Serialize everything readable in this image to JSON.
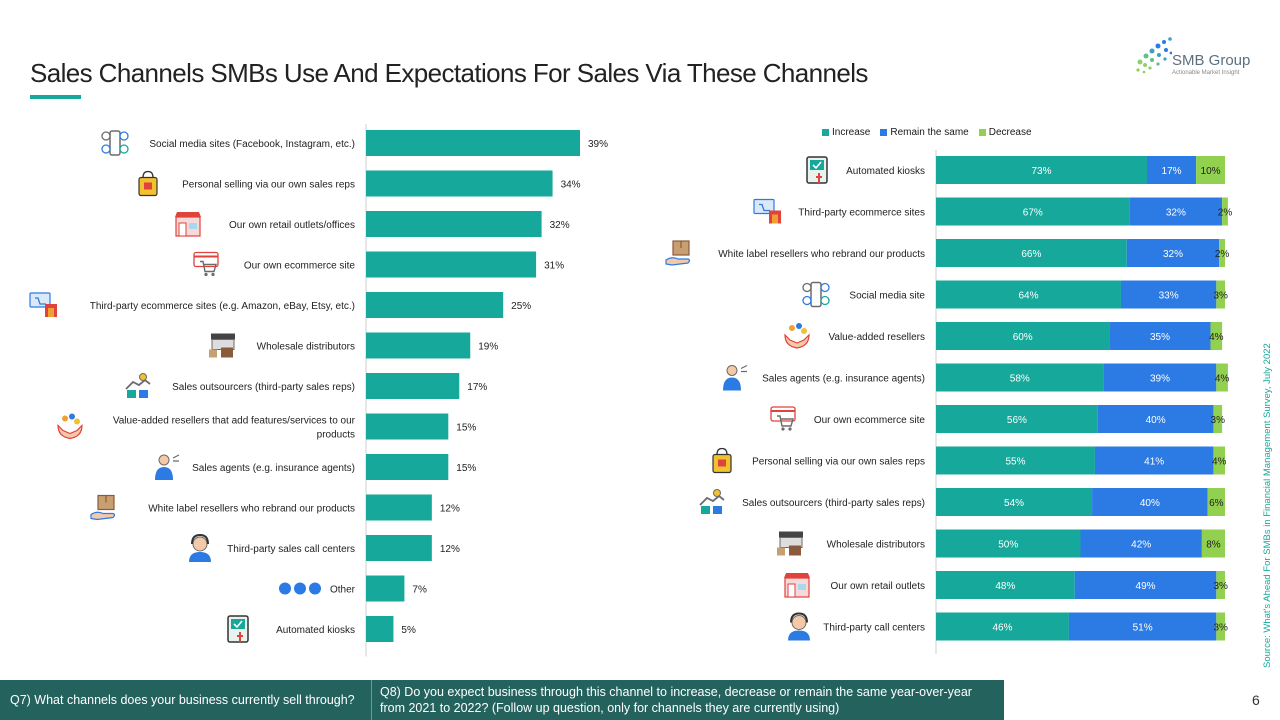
{
  "title": "Sales Channels SMBs Use And Expectations For Sales Via These Channels",
  "logo": {
    "name": "SMB Group",
    "tagline": "Actionable Market Insight"
  },
  "colors": {
    "teal": "#16a89a",
    "blue": "#2c7be5",
    "green": "#92d050",
    "dark_teal": "#24625e"
  },
  "source": "Source: What's Ahead For SMBs in Financial Management Survey, July 2022",
  "footer": {
    "q7": "Q7) What channels does your business currently sell through?",
    "q8": "Q8) Do you expect business through this channel to increase, decrease or remain the same year-over-year from 2021 to 2022?  (Follow up question, only for channels they are currently using)",
    "page": "6"
  },
  "chart_data": [
    {
      "type": "bar",
      "orientation": "horizontal",
      "categories": [
        "Social media sites (Facebook, Instagram, etc.)",
        "Personal selling via our own sales reps",
        "Our own retail outlets/offices",
        "Our own ecommerce site",
        "Third-party ecommerce sites (e.g. Amazon, eBay, Etsy, etc.)",
        "Wholesale distributors",
        "Sales outsourcers (third-party sales reps)",
        "Value-added resellers that add features/services to our products",
        "Sales agents (e.g.  insurance agents)",
        "White label resellers who rebrand our products",
        "Third-party sales call centers",
        "Other",
        "Automated kiosks"
      ],
      "values": [
        39,
        34,
        32,
        31,
        25,
        19,
        17,
        15,
        15,
        12,
        12,
        7,
        5
      ],
      "labels": [
        "39%",
        "34%",
        "32%",
        "31%",
        "25%",
        "19%",
        "17%",
        "15%",
        "15%",
        "12%",
        "12%",
        "7%",
        "5%"
      ],
      "icons": [
        "social-media-icon",
        "shopping-bag-icon",
        "storefront-icon",
        "ecommerce-cart-icon",
        "third-party-ecommerce-icon",
        "wholesale-truck-icon",
        "handshake-outsourcer-icon",
        "value-added-hands-icon",
        "sales-agent-icon",
        "white-label-box-icon",
        "call-center-headset-icon",
        "other-dots-icon",
        "kiosk-icon"
      ],
      "xlim": [
        0,
        100
      ],
      "unit": "%"
    },
    {
      "type": "bar",
      "orientation": "horizontal",
      "stacked": true,
      "legend": "top",
      "categories": [
        "Automated kiosks",
        "Third-party ecommerce sites",
        "White label resellers who rebrand our products",
        "Social media site",
        "Value-added resellers",
        "Sales agents (e.g. insurance agents)",
        "Our own ecommerce site",
        "Personal selling via our own sales reps",
        "Sales outsourcers (third-party sales reps)",
        "Wholesale distributors",
        "Our own retail outlets",
        "Third-party call centers"
      ],
      "icons": [
        "kiosk-icon",
        "third-party-ecommerce-icon",
        "white-label-box-icon",
        "social-media-icon",
        "value-added-hands-icon",
        "sales-agent-icon",
        "ecommerce-cart-icon",
        "shopping-bag-icon",
        "handshake-outsourcer-icon",
        "wholesale-truck-icon",
        "storefront-icon",
        "call-center-headset-icon"
      ],
      "series": [
        {
          "name": "Increase",
          "color": "#16a89a",
          "values": [
            73,
            67,
            66,
            64,
            60,
            58,
            56,
            55,
            54,
            50,
            48,
            46
          ]
        },
        {
          "name": "Remain the same",
          "color": "#2c7be5",
          "values": [
            17,
            32,
            32,
            33,
            35,
            39,
            40,
            41,
            40,
            42,
            49,
            51
          ]
        },
        {
          "name": "Decrease",
          "color": "#92d050",
          "values": [
            10,
            2,
            2,
            3,
            4,
            4,
            3,
            4,
            6,
            8,
            3,
            3
          ]
        }
      ],
      "xlim": [
        0,
        100
      ],
      "unit": "%"
    }
  ]
}
